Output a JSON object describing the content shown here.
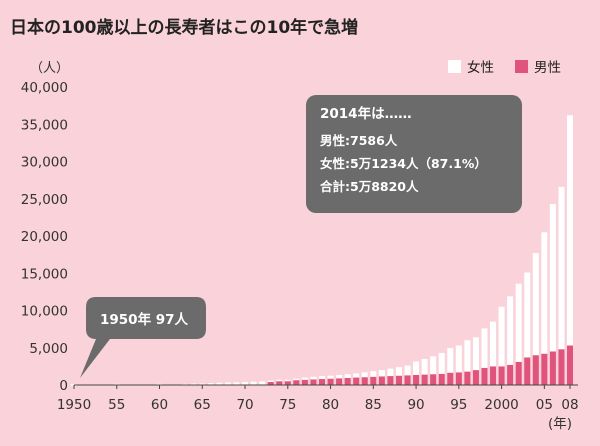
{
  "title": "日本の100歳以上の長寿者はこの10年で急増",
  "unit_y": "（人）",
  "unit_x": "(年)",
  "colors": {
    "background": "#f9d3d9",
    "female": "#ffffff",
    "male": "#e0537a",
    "callout": "#6c6b6b",
    "axis": "#444444"
  },
  "legend": [
    {
      "label": "女性",
      "color": "#ffffff"
    },
    {
      "label": "男性",
      "color": "#e0537a"
    }
  ],
  "callout_1950": {
    "text": "1950年 97人"
  },
  "callout_2014": {
    "head": "2014年は……",
    "lines": [
      "男性:7586人",
      "女性:5万1234人（87.1%）",
      "合計:5万8820人"
    ]
  },
  "chart_data": {
    "type": "bar",
    "stacked": true,
    "title": "日本の100歳以上の長寿者はこの10年で急増",
    "ylabel": "（人）",
    "xlabel": "(年)",
    "ylim": [
      0,
      40000
    ],
    "yticks": [
      "0",
      "5,000",
      "10,000",
      "15,000",
      "20,000",
      "25,000",
      "30,000",
      "35,000",
      "40,000"
    ],
    "xticks": [
      {
        "year": 1950,
        "label": "1950"
      },
      {
        "year": 1955,
        "label": "55"
      },
      {
        "year": 1960,
        "label": "60"
      },
      {
        "year": 1965,
        "label": "65"
      },
      {
        "year": 1970,
        "label": "70"
      },
      {
        "year": 1975,
        "label": "75"
      },
      {
        "year": 1980,
        "label": "80"
      },
      {
        "year": 1985,
        "label": "85"
      },
      {
        "year": 1990,
        "label": "90"
      },
      {
        "year": 1995,
        "label": "95"
      },
      {
        "year": 2000,
        "label": "2000"
      },
      {
        "year": 2005,
        "label": "05"
      },
      {
        "year": 2008,
        "label": "08"
      }
    ],
    "years": [
      1950,
      1955,
      1960,
      1963,
      1964,
      1965,
      1966,
      1967,
      1968,
      1969,
      1970,
      1971,
      1972,
      1973,
      1974,
      1975,
      1976,
      1977,
      1978,
      1979,
      1980,
      1981,
      1982,
      1983,
      1984,
      1985,
      1986,
      1987,
      1988,
      1989,
      1990,
      1991,
      1992,
      1993,
      1994,
      1995,
      1996,
      1997,
      1998,
      1999,
      2000,
      2001,
      2002,
      2003,
      2004,
      2005,
      2006,
      2007,
      2008
    ],
    "series": [
      {
        "name": "男性",
        "values": [
          0,
          0,
          0,
          0,
          0,
          0,
          0,
          0,
          0,
          0,
          0,
          0,
          0,
          500,
          550,
          600,
          650,
          700,
          750,
          800,
          850,
          900,
          950,
          1000,
          1050,
          1100,
          1150,
          1200,
          1250,
          1300,
          1350,
          1400,
          1450,
          1500,
          1650,
          1700,
          1800,
          2000,
          2300,
          2500,
          2500,
          2700,
          3100,
          3700,
          4000,
          4200,
          4500,
          4800,
          5300
        ]
      },
      {
        "name": "女性",
        "values": [
          97,
          150,
          155,
          150,
          200,
          200,
          250,
          300,
          330,
          350,
          400,
          450,
          500,
          100,
          150,
          100,
          200,
          300,
          350,
          400,
          400,
          450,
          500,
          550,
          650,
          750,
          850,
          1000,
          1150,
          1300,
          1800,
          2100,
          2400,
          2800,
          3300,
          3600,
          4200,
          4400,
          5300,
          6000,
          8000,
          9200,
          10500,
          11400,
          13700,
          16300,
          19800,
          21800,
          30900
        ]
      }
    ]
  }
}
